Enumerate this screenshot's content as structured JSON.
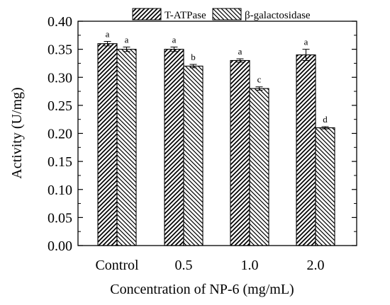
{
  "chart_data": {
    "type": "bar",
    "title": "",
    "xlabel": "Concentration of NP-6 (mg/mL)",
    "ylabel": "Activity (U/mg)",
    "categories": [
      "Control",
      "0.5",
      "1.0",
      "2.0"
    ],
    "ylim": [
      0.0,
      0.4
    ],
    "yticks": [
      "0.00",
      "0.05",
      "0.10",
      "0.15",
      "0.20",
      "0.25",
      "0.30",
      "0.35",
      "0.40"
    ],
    "legend_position": "top-center",
    "series": [
      {
        "name": "T-ATPase",
        "pattern": "hatch-forward",
        "values": [
          0.36,
          0.35,
          0.33,
          0.34
        ],
        "errors": [
          0.004,
          0.004,
          0.003,
          0.01
        ],
        "labels": [
          "a",
          "a",
          "a",
          "a"
        ]
      },
      {
        "name": "β-galactosidase",
        "pattern": "hatch-backward",
        "values": [
          0.35,
          0.32,
          0.28,
          0.21
        ],
        "errors": [
          0.004,
          0.003,
          0.003,
          0.002
        ],
        "labels": [
          "a",
          "b",
          "c",
          "d"
        ]
      }
    ]
  }
}
